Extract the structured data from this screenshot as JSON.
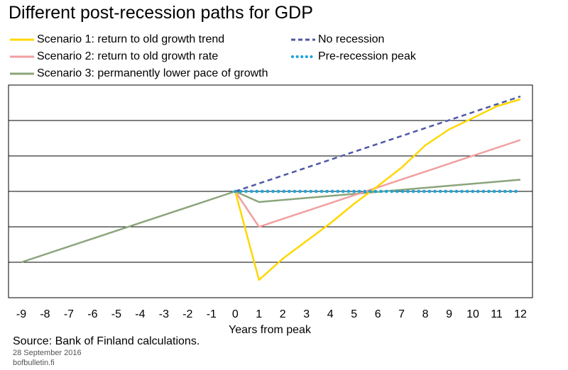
{
  "chart_data": {
    "type": "line",
    "title": "Different post-recession paths for GDP",
    "xlabel": "Years from peak",
    "ylabel": "",
    "xlim": [
      -9,
      12
    ],
    "ylim": [
      -3,
      3
    ],
    "grid": true,
    "legend_position": "top",
    "x_ticks": [
      -9,
      -8,
      -7,
      -6,
      -5,
      -4,
      -3,
      -2,
      -1,
      0,
      1,
      2,
      3,
      4,
      5,
      6,
      7,
      8,
      9,
      10,
      11,
      12
    ],
    "series": [
      {
        "name": "Scenario 1: return to old growth trend",
        "color": "#ffd700",
        "style": "solid",
        "x": [
          0,
          1,
          2,
          3,
          4,
          5,
          6,
          7,
          8,
          9,
          10,
          11,
          12
        ],
        "y": [
          0,
          -2.5,
          -1.9,
          -1.4,
          -0.9,
          -0.35,
          0.15,
          0.67,
          1.3,
          1.75,
          2.07,
          2.4,
          2.6
        ]
      },
      {
        "name": "Scenario 2: return to old growth rate",
        "color": "#f19fa0",
        "style": "solid",
        "x": [
          0,
          1,
          12
        ],
        "y": [
          0,
          -1,
          1.45
        ]
      },
      {
        "name": "Scenario 3: permanently lower pace of growth",
        "color": "#8aa57a",
        "style": "solid",
        "x": [
          -9,
          0,
          1,
          12
        ],
        "y": [
          -2,
          0,
          -0.3,
          0.33
        ]
      },
      {
        "name": "No recession",
        "color": "#5057a6",
        "style": "dashed",
        "x": [
          0,
          12
        ],
        "y": [
          0,
          2.68
        ]
      },
      {
        "name": "Pre-recession peak",
        "color": "#1ca3dc",
        "style": "dotted",
        "x": [
          0,
          12
        ],
        "y": [
          0,
          0
        ]
      }
    ]
  },
  "footer": {
    "source": "Source: Bank of Finland calculations.",
    "date": "28 September 2016",
    "site": "bofbulletin.fi"
  }
}
